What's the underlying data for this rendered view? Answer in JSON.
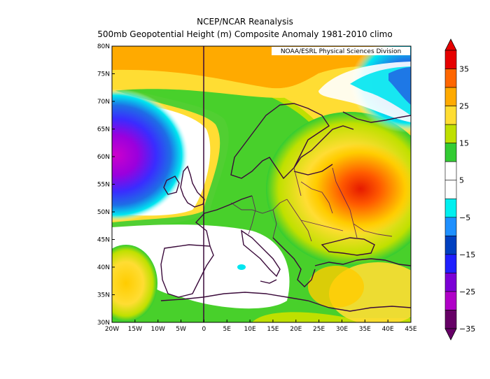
{
  "title_line1": "NCEP/NCAR Reanalysis",
  "title_line2": "500mb Geopotential Height (m) Composite Anomaly 1981-2010 climo",
  "credit": "NOAA/ESRL Physical Sciences Division",
  "lat_labels": [
    "80N",
    "75N",
    "70N",
    "65N",
    "60N",
    "55N",
    "50N",
    "45N",
    "40N",
    "35N",
    "30N"
  ],
  "lon_labels": [
    "20W",
    "15W",
    "10W",
    "5W",
    "0",
    "5E",
    "10E",
    "15E",
    "20E",
    "25E",
    "30E",
    "35E",
    "40E",
    "45E"
  ],
  "colorbar": {
    "labels": [
      "35",
      "25",
      "15",
      "5",
      "−5",
      "−15",
      "−25",
      "−35"
    ],
    "colors": [
      "#e60000",
      "#ff6600",
      "#ffaa00",
      "#ffdd33",
      "#bfe000",
      "#33cc33",
      "#ffffff",
      "#ffffff",
      "#00f0f0",
      "#1e90ff",
      "#0040c0",
      "#2020ff",
      "#7b00d6",
      "#b000c8",
      "#660066"
    ]
  },
  "map": {
    "region": "Europe / North Atlantic",
    "lon_range": [
      -20,
      45
    ],
    "lat_range": [
      30,
      80
    ],
    "features": {
      "positive_max": "35",
      "negative_min": "-35"
    }
  }
}
